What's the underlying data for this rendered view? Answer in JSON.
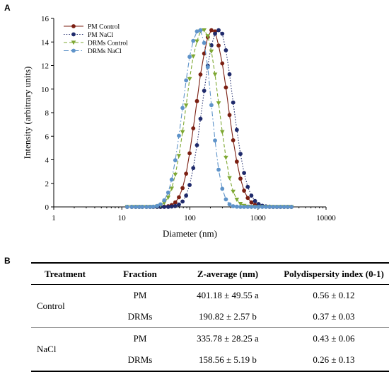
{
  "panels": {
    "a": "A",
    "b": "B"
  },
  "chart_data": {
    "type": "line",
    "xscale": "log",
    "xlabel": "Diameter (nm)",
    "ylabel": "Intensity (arbitrary units)",
    "xlim": [
      1,
      10000
    ],
    "ylim": [
      0,
      16
    ],
    "xticks": [
      "1",
      "10",
      "100",
      "1000",
      "10000"
    ],
    "yticks": [
      "0",
      "2",
      "4",
      "6",
      "8",
      "10",
      "12",
      "14",
      "16"
    ],
    "grid": false,
    "legend_position": "top-left",
    "series": [
      {
        "name": "PM Control",
        "color": "#7B1F12",
        "dash": "solid",
        "marker": "circle",
        "x": [
          12,
          14,
          16,
          18,
          20,
          23,
          26,
          29,
          33,
          37,
          42,
          48,
          54,
          61,
          69,
          78,
          88,
          99,
          112,
          127,
          143,
          162,
          183,
          207,
          234,
          264,
          299,
          338,
          382,
          432,
          489,
          553,
          625,
          707,
          800,
          904,
          1023,
          1157,
          1309,
          1480,
          1674,
          1893,
          2141,
          2421,
          2738,
          3097
        ],
        "y": [
          0,
          0,
          0,
          0,
          0,
          0,
          0,
          0,
          0,
          0,
          0.02,
          0.06,
          0.16,
          0.38,
          0.82,
          1.6,
          2.82,
          4.55,
          6.67,
          8.98,
          11.24,
          13.02,
          14.41,
          15.0,
          14.9,
          13.7,
          12.18,
          10.14,
          7.8,
          5.66,
          3.84,
          2.4,
          1.38,
          0.76,
          0.38,
          0.18,
          0.08,
          0.04,
          0.02,
          0,
          0,
          0,
          0,
          0,
          0,
          0
        ]
      },
      {
        "name": "PM NaCl",
        "color": "#1F2A6B",
        "dash": "dotted",
        "marker": "circle",
        "x": [
          12,
          14,
          16,
          18,
          20,
          23,
          26,
          29,
          33,
          37,
          42,
          48,
          54,
          61,
          69,
          78,
          88,
          99,
          112,
          127,
          143,
          162,
          183,
          207,
          234,
          264,
          299,
          338,
          382,
          432,
          489,
          553,
          625,
          707,
          800,
          904,
          1023,
          1157,
          1309,
          1480,
          1674,
          1893,
          2141,
          2421,
          2738,
          3097
        ],
        "y": [
          0,
          0,
          0,
          0,
          0,
          0,
          0,
          0,
          0,
          0,
          0,
          0,
          0.03,
          0.08,
          0.2,
          0.46,
          0.96,
          1.86,
          3.3,
          5.24,
          7.48,
          9.86,
          11.98,
          13.72,
          14.7,
          15.0,
          14.7,
          13.3,
          11.26,
          8.86,
          6.54,
          4.5,
          2.88,
          1.7,
          0.96,
          0.5,
          0.24,
          0.1,
          0.04,
          0.02,
          0,
          0,
          0,
          0,
          0,
          0
        ]
      },
      {
        "name": "DRMs Control",
        "color": "#7EA833",
        "dash": "dashed",
        "marker": "triangle-down",
        "x": [
          12,
          14,
          16,
          18,
          20,
          23,
          26,
          29,
          33,
          37,
          42,
          48,
          54,
          61,
          69,
          78,
          88,
          99,
          112,
          127,
          143,
          162,
          183,
          207,
          234,
          264,
          299,
          338,
          382,
          432,
          489,
          553,
          625,
          707,
          800,
          904,
          1023,
          1157,
          1309,
          1480,
          1674,
          1893,
          2141,
          2421,
          2738,
          3097
        ],
        "y": [
          0,
          0,
          0,
          0,
          0,
          0,
          0,
          0,
          0.04,
          0.12,
          0.34,
          0.8,
          1.56,
          2.74,
          4.34,
          6.36,
          8.62,
          10.86,
          12.78,
          14.06,
          14.92,
          15.0,
          14.5,
          13.2,
          11.24,
          8.8,
          6.36,
          4.18,
          2.46,
          1.3,
          0.62,
          0.26,
          0.1,
          0.03,
          0,
          0,
          0,
          0,
          0,
          0,
          0,
          0,
          0,
          0,
          0,
          0
        ]
      },
      {
        "name": "DRMs NaCl",
        "color": "#5E93C9",
        "dash": "dash-dot",
        "marker": "circle",
        "x": [
          12,
          14,
          16,
          18,
          20,
          23,
          26,
          29,
          33,
          37,
          42,
          48,
          54,
          61,
          69,
          78,
          88,
          99,
          112,
          127,
          143,
          162,
          183,
          207,
          234,
          264,
          299,
          338,
          382,
          432,
          489,
          553,
          625,
          707,
          800,
          904,
          1023,
          1157,
          1309,
          1480,
          1674,
          1893,
          2141,
          2421,
          2738,
          3097
        ],
        "y": [
          0,
          0,
          0,
          0,
          0,
          0,
          0,
          0.02,
          0.08,
          0.22,
          0.56,
          1.22,
          2.32,
          3.96,
          6.04,
          8.4,
          10.74,
          12.74,
          14.1,
          14.9,
          15.0,
          13.92,
          11.86,
          8.64,
          5.64,
          3.16,
          1.54,
          0.64,
          0.22,
          0.06,
          0.02,
          0,
          0,
          0,
          0,
          0,
          0,
          0,
          0,
          0,
          0,
          0,
          0,
          0,
          0,
          0
        ]
      }
    ]
  },
  "table": {
    "headers": [
      "Treatment",
      "Fraction",
      "Z-average (nm)",
      "Polydispersity index (0-1)"
    ],
    "groups": [
      {
        "treatment": "Control",
        "rows": [
          {
            "fraction": "PM",
            "z": "401.18 ± 49.55 a",
            "pdi": "0.56 ± 0.12"
          },
          {
            "fraction": "DRMs",
            "z": "190.82 ± 2.57 b",
            "pdi": "0.37 ± 0.03"
          }
        ]
      },
      {
        "treatment": "NaCl",
        "rows": [
          {
            "fraction": "PM",
            "z": "335.78 ± 28.25 a",
            "pdi": "0.43 ± 0.06"
          },
          {
            "fraction": "DRMs",
            "z": "158.56 ± 5.19 b",
            "pdi": "0.26 ± 0.13"
          }
        ]
      }
    ]
  }
}
